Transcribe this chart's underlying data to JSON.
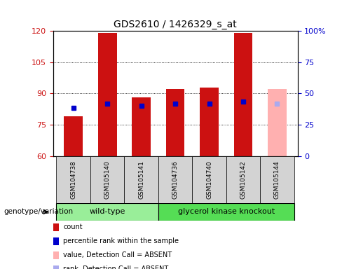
{
  "title": "GDS2610 / 1426329_s_at",
  "samples": [
    "GSM104738",
    "GSM105140",
    "GSM105141",
    "GSM104736",
    "GSM104740",
    "GSM105142",
    "GSM105144"
  ],
  "count_values": [
    79,
    119,
    88,
    92,
    93,
    119,
    92
  ],
  "percentile_values": [
    83,
    85,
    84,
    85,
    85,
    86,
    85
  ],
  "absent_flags": [
    false,
    false,
    false,
    false,
    false,
    false,
    true
  ],
  "ylim_left": [
    60,
    120
  ],
  "ylim_right": [
    0,
    100
  ],
  "yticks_left": [
    60,
    75,
    90,
    105,
    120
  ],
  "yticks_right": [
    0,
    25,
    50,
    75,
    100
  ],
  "bar_color_normal": "#cc1111",
  "bar_color_absent": "#ffb0b0",
  "dot_color_normal": "#0000cc",
  "dot_color_absent": "#aaaaee",
  "wildtype_color": "#99ee99",
  "knockout_color": "#55dd55",
  "wildtype_label": "wild-type",
  "knockout_label": "glycerol kinase knockout",
  "group_label": "genotype/variation",
  "legend_items": [
    {
      "label": "count",
      "color": "#cc1111"
    },
    {
      "label": "percentile rank within the sample",
      "color": "#0000cc"
    },
    {
      "label": "value, Detection Call = ABSENT",
      "color": "#ffb0b0"
    },
    {
      "label": "rank, Detection Call = ABSENT",
      "color": "#aaaaee"
    }
  ],
  "bar_width": 0.55,
  "left_color": "#cc1111",
  "right_color": "#0000cc",
  "background_color": "#ffffff"
}
